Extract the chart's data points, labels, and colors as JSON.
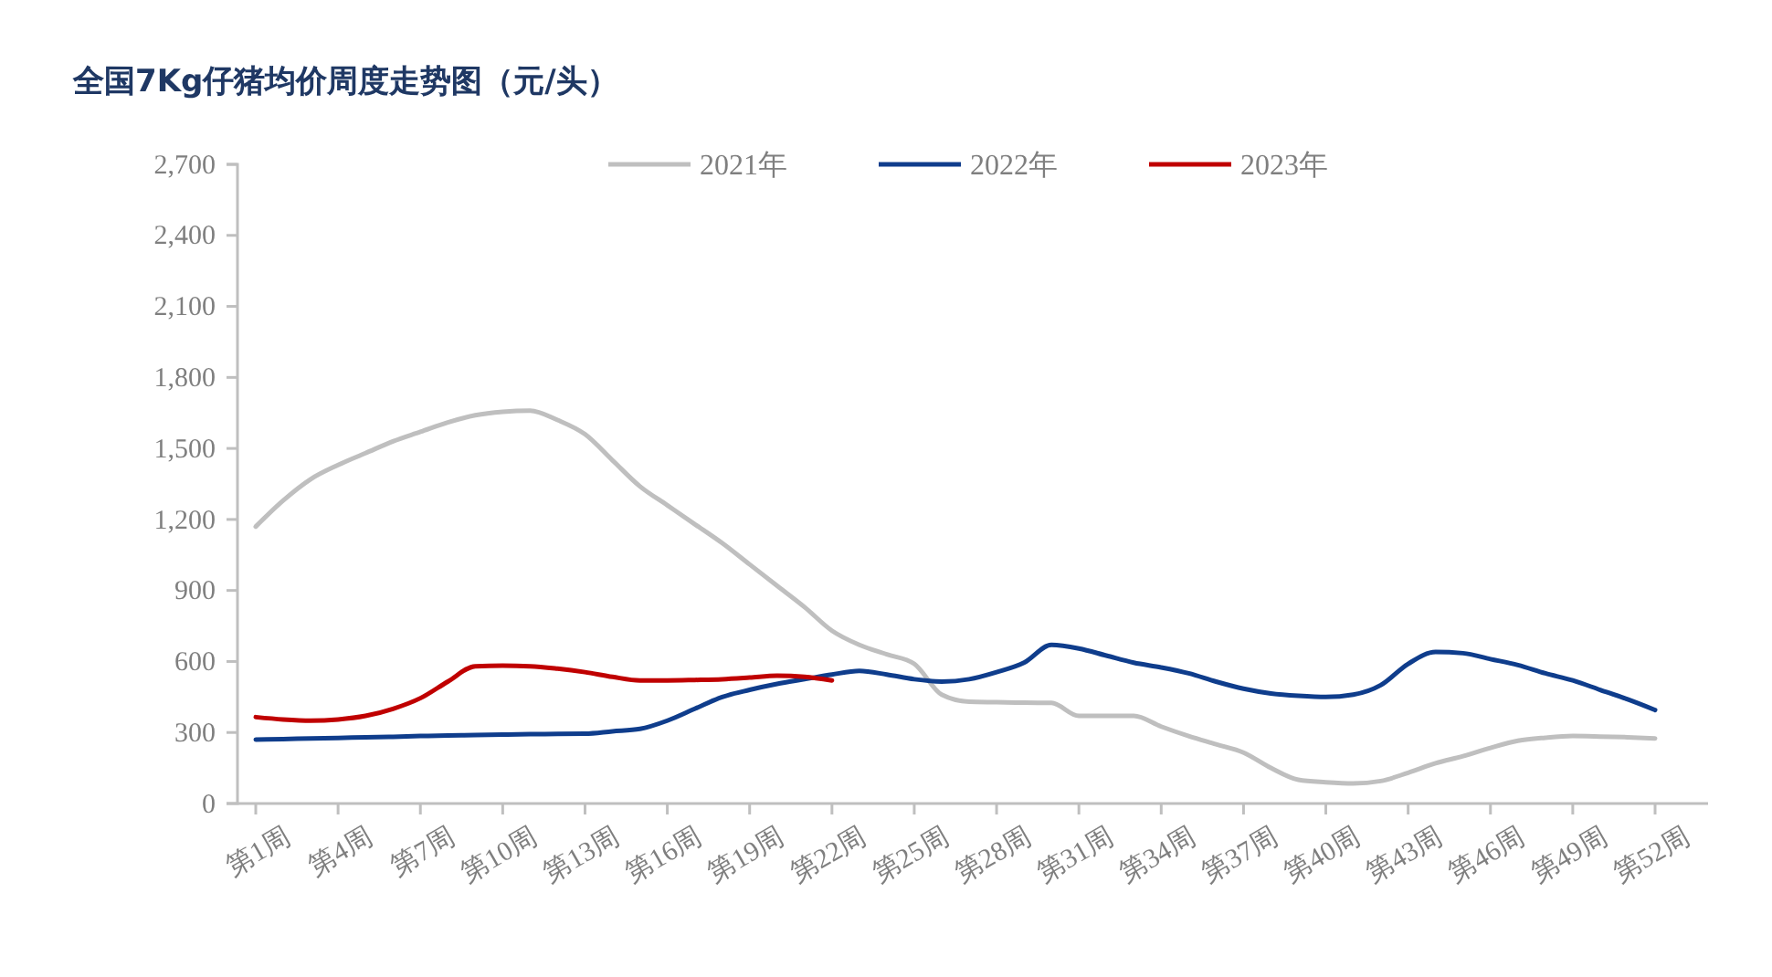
{
  "chart_data": {
    "type": "line",
    "title": "全国7Kg仔猪均价周度走势图（元/头）",
    "categories": [
      "第1周",
      null,
      null,
      "第4周",
      null,
      null,
      "第7周",
      null,
      null,
      "第10周",
      null,
      null,
      "第13周",
      null,
      null,
      "第16周",
      null,
      null,
      "第19周",
      null,
      null,
      "第22周",
      null,
      null,
      "第25周",
      null,
      null,
      "第28周",
      null,
      null,
      "第31周",
      null,
      null,
      "第34周",
      null,
      null,
      "第37周",
      null,
      null,
      "第40周",
      null,
      null,
      "第43周",
      null,
      null,
      "第46周",
      null,
      null,
      "第49周",
      null,
      null,
      "第52周"
    ],
    "ylim": [
      0,
      2700
    ],
    "yticks": [
      {
        "value": 0,
        "label": "0"
      },
      {
        "value": 300,
        "label": "300"
      },
      {
        "value": 600,
        "label": "600"
      },
      {
        "value": 900,
        "label": "900"
      },
      {
        "value": 1200,
        "label": "1,200"
      },
      {
        "value": 1500,
        "label": "1,500"
      },
      {
        "value": 1800,
        "label": "1,800"
      },
      {
        "value": 2100,
        "label": "2,100"
      },
      {
        "value": 2400,
        "label": "2,400"
      },
      {
        "value": 2700,
        "label": "2,700"
      }
    ],
    "grid": false,
    "legend": "top",
    "marker": "none",
    "line_style": "solid",
    "series": [
      {
        "name": "2021年",
        "color": "#bfbfbf",
        "values": [
          1170,
          1280,
          1370,
          1430,
          1480,
          1530,
          1570,
          1610,
          1640,
          1655,
          1660,
          1620,
          1560,
          1450,
          1340,
          1260,
          1180,
          1100,
          1010,
          920,
          830,
          730,
          670,
          630,
          590,
          460,
          430,
          428,
          426,
          425,
          370,
          370,
          370,
          325,
          285,
          250,
          215,
          150,
          100,
          90,
          85,
          95,
          130,
          170,
          200,
          235,
          265,
          278,
          285,
          283,
          280,
          275
        ]
      },
      {
        "name": "2022年",
        "color": "#0f3d8c",
        "values": [
          270,
          272,
          275,
          277,
          280,
          282,
          285,
          287,
          289,
          291,
          293,
          294,
          295,
          305,
          315,
          350,
          400,
          450,
          480,
          505,
          525,
          545,
          560,
          545,
          525,
          515,
          525,
          555,
          595,
          670,
          655,
          625,
          595,
          575,
          550,
          515,
          485,
          465,
          455,
          450,
          460,
          500,
          590,
          640,
          635,
          610,
          585,
          550,
          520,
          480,
          440,
          395
        ]
      },
      {
        "name": "2023年",
        "color": "#c00000",
        "values": [
          365,
          355,
          350,
          355,
          370,
          400,
          445,
          515,
          580,
          582,
          580,
          570,
          555,
          535,
          520,
          520,
          522,
          525,
          532,
          540,
          535,
          520,
          null,
          null,
          null,
          null,
          null,
          null,
          null,
          null,
          null,
          null,
          null,
          null,
          null,
          null,
          null,
          null,
          null,
          null,
          null,
          null,
          null,
          null,
          null,
          null,
          null,
          null,
          null,
          null,
          null,
          null
        ]
      }
    ]
  }
}
